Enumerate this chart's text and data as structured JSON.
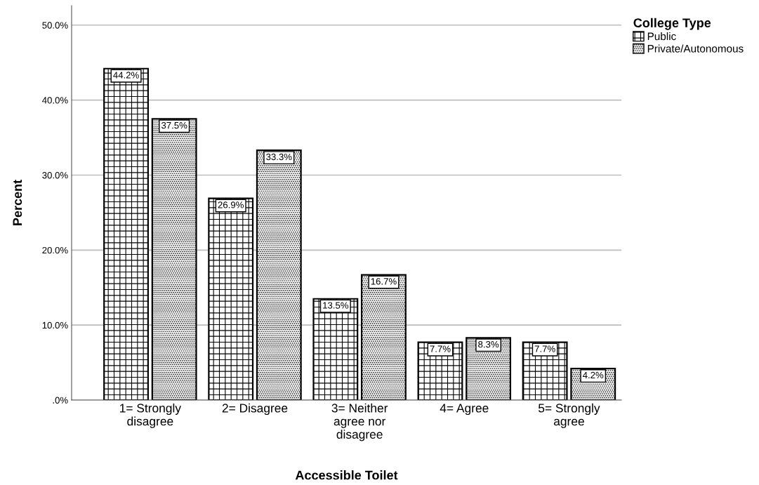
{
  "chart_data": {
    "type": "bar",
    "xlabel": "Accessible Toilet",
    "ylabel": "Percent",
    "legend_title": "College Type",
    "legend": "top right",
    "grid": "y",
    "categories": [
      "1= Strongly\ndisagree",
      "2= Disagree",
      "3= Neither\nagree nor\ndisagree",
      "4= Agree",
      "5= Strongly\nagree"
    ],
    "series": [
      {
        "name": "Public",
        "color": "#000000",
        "values": [
          44.2,
          26.9,
          13.5,
          7.7,
          7.7
        ],
        "value_labels": [
          "44.2%",
          "26.9%",
          "13.5%",
          "7.7%",
          "7.7%"
        ]
      },
      {
        "name": "Private/Autonomous",
        "color": "#000000",
        "values": [
          37.5,
          33.3,
          16.7,
          8.3,
          4.2
        ],
        "value_labels": [
          "37.5%",
          "33.3%",
          "16.7%",
          "8.3%",
          "4.2%"
        ]
      }
    ],
    "ylim": [
      0,
      52.6
    ],
    "yticks": [
      {
        "value": 0,
        "label": ".0%"
      },
      {
        "value": 10,
        "label": "10.0%"
      },
      {
        "value": 20,
        "label": "20.0%"
      },
      {
        "value": 30,
        "label": "30.0%"
      },
      {
        "value": 40,
        "label": "40.0%"
      },
      {
        "value": 50,
        "label": "50.0%"
      }
    ]
  }
}
